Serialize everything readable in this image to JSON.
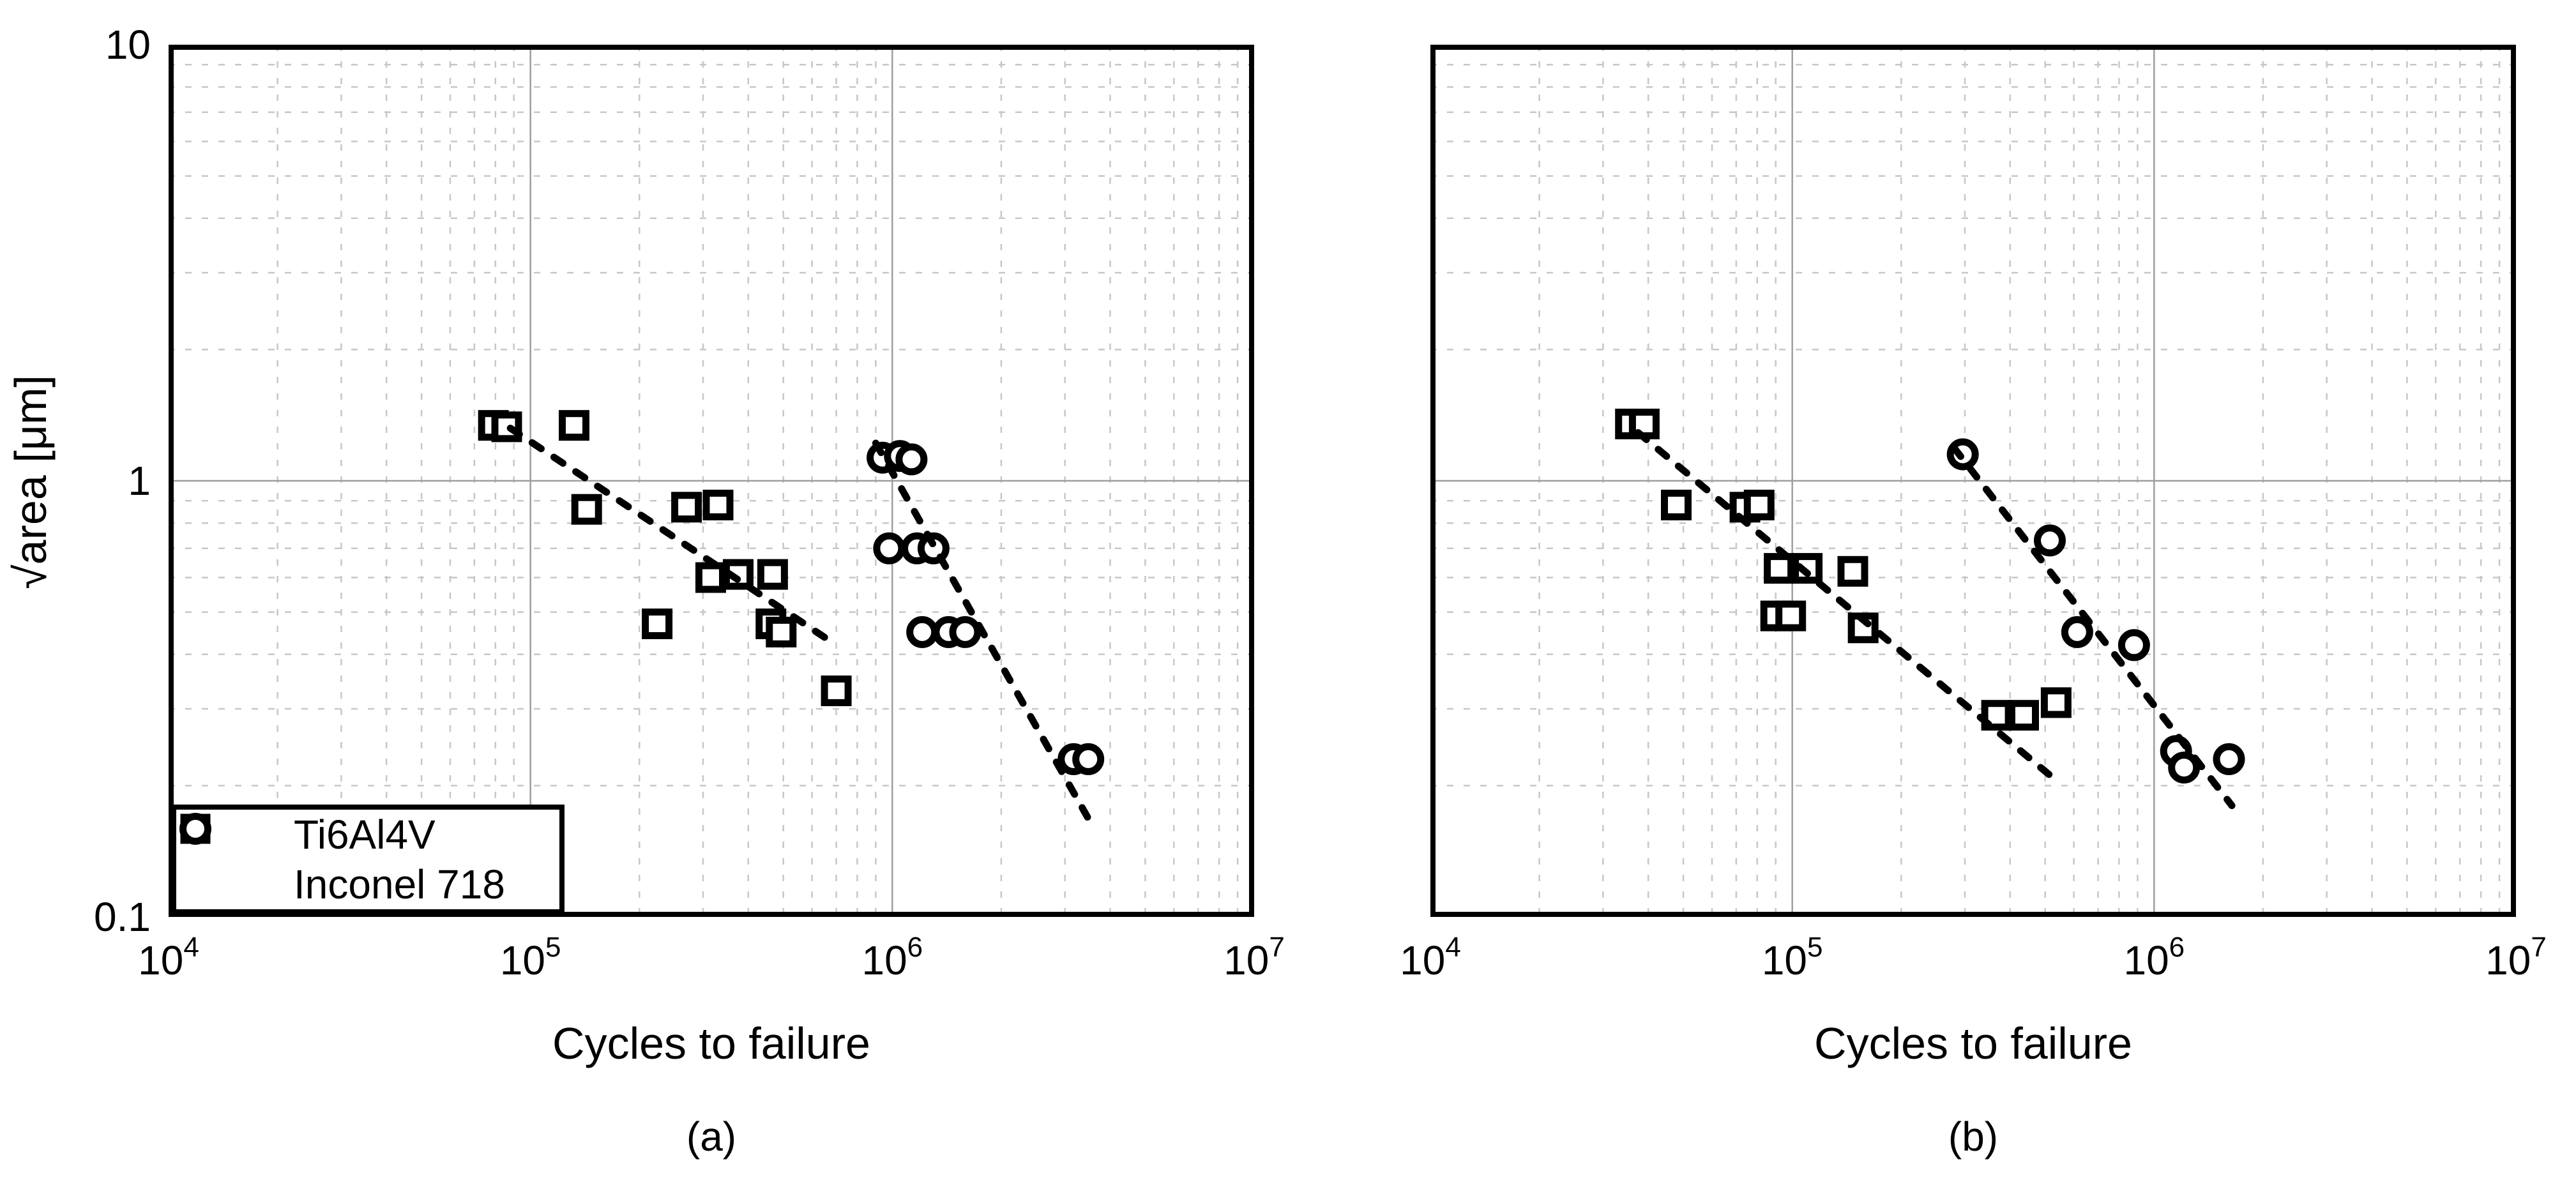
{
  "figure": {
    "y_axis_label": "√area [μm]",
    "x_axis_label": "Cycles to failure",
    "y_ticks": [
      {
        "label": "10",
        "value": 10
      },
      {
        "label": "1",
        "value": 1
      },
      {
        "label": "0.1",
        "value": 0.1
      }
    ],
    "x_ticks": [
      {
        "base": "10",
        "exp": "4",
        "value": 10000
      },
      {
        "base": "10",
        "exp": "5",
        "value": 100000
      },
      {
        "base": "10",
        "exp": "6",
        "value": 1000000
      },
      {
        "base": "10",
        "exp": "7",
        "value": 10000000
      }
    ]
  },
  "legend": {
    "items": [
      {
        "label": "Ti6Al4V",
        "marker": "square"
      },
      {
        "label": "Inconel 718",
        "marker": "circle"
      }
    ]
  },
  "style": {
    "marker_color": "#000000",
    "marker_fill": "#ffffff",
    "trend_color": "#000000",
    "grid_minor_color": "#c7c7c7",
    "grid_major_color": "#9e9e9e",
    "border_color": "#000000"
  },
  "chart_data": [
    {
      "type": "scatter",
      "caption": "(a)",
      "xlabel": "Cycles to failure",
      "ylabel": "√area [μm]",
      "xscale": "log",
      "yscale": "log",
      "xlim": [
        10000,
        10000000
      ],
      "ylim": [
        0.1,
        10
      ],
      "grid": true,
      "legend_position": "lower left",
      "series": [
        {
          "name": "Ti6Al4V",
          "marker": "square",
          "points": [
            [
              79000,
              1.34
            ],
            [
              86000,
              1.33
            ],
            [
              132000,
              1.34
            ],
            [
              143000,
              0.86
            ],
            [
              270000,
              0.87
            ],
            [
              330000,
              0.88
            ],
            [
              315000,
              0.6
            ],
            [
              375000,
              0.61
            ],
            [
              467000,
              0.61
            ],
            [
              224000,
              0.47
            ],
            [
              462000,
              0.47
            ],
            [
              493000,
              0.45
            ],
            [
              700000,
              0.33
            ]
          ]
        },
        {
          "name": "Inconel 718",
          "marker": "circle",
          "points": [
            [
              940000,
              1.13
            ],
            [
              1050000,
              1.14
            ],
            [
              1130000,
              1.12
            ],
            [
              980000,
              0.7
            ],
            [
              1170000,
              0.7
            ],
            [
              1300000,
              0.7
            ],
            [
              1210000,
              0.45
            ],
            [
              1430000,
              0.45
            ],
            [
              1590000,
              0.45
            ],
            [
              3170000,
              0.23
            ],
            [
              3480000,
              0.23
            ]
          ]
        }
      ],
      "trend_lines": [
        {
          "series": "Ti6Al4V",
          "style": "dashed",
          "from": [
            88000,
            1.32
          ],
          "to": [
            700000,
            0.42
          ]
        },
        {
          "series": "Inconel 718",
          "style": "dashed",
          "from": [
            900000,
            1.22
          ],
          "to": [
            3600000,
            0.16
          ]
        }
      ]
    },
    {
      "type": "scatter",
      "caption": "(b)",
      "xlabel": "Cycles to failure",
      "ylabel": "√area [μm]",
      "xscale": "log",
      "yscale": "log",
      "xlim": [
        10000,
        10000000
      ],
      "ylim": [
        0.1,
        10
      ],
      "grid": true,
      "legend_position": "none",
      "series": [
        {
          "name": "Ti6Al4V",
          "marker": "square",
          "points": [
            [
              35700,
              1.35
            ],
            [
              39000,
              1.35
            ],
            [
              47800,
              0.88
            ],
            [
              74000,
              0.87
            ],
            [
              81000,
              0.88
            ],
            [
              92000,
              0.63
            ],
            [
              110000,
              0.63
            ],
            [
              147000,
              0.62
            ],
            [
              90000,
              0.49
            ],
            [
              99000,
              0.49
            ],
            [
              157000,
              0.46
            ],
            [
              367000,
              0.29
            ],
            [
              436000,
              0.29
            ],
            [
              536000,
              0.31
            ]
          ]
        },
        {
          "name": "Inconel 718",
          "marker": "circle",
          "points": [
            [
              296000,
              1.15
            ],
            [
              515000,
              0.73
            ],
            [
              613000,
              0.45
            ],
            [
              880000,
              0.42
            ],
            [
              1150000,
              0.24
            ],
            [
              1210000,
              0.22
            ],
            [
              1610000,
              0.23
            ]
          ]
        }
      ],
      "trend_lines": [
        {
          "series": "Ti6Al4V",
          "style": "dashed",
          "from": [
            37500,
            1.29
          ],
          "to": [
            520000,
            0.21
          ]
        },
        {
          "series": "Inconel 718",
          "style": "dashed",
          "from": [
            280000,
            1.19
          ],
          "to": [
            1640000,
            0.18
          ]
        }
      ]
    }
  ]
}
